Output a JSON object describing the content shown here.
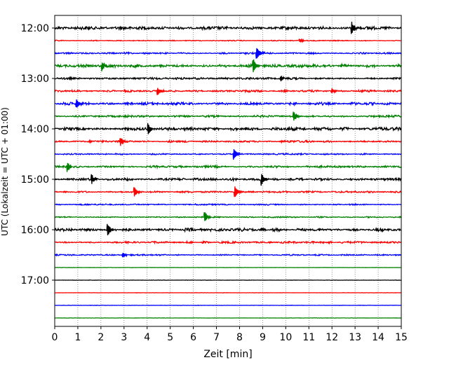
{
  "chart_data": {
    "type": "line",
    "title": "",
    "xlabel": "Zeit  [min]",
    "ylabel": "UTC (Lokalzeit = UTC + 01:00)",
    "xlim": [
      0,
      15
    ],
    "x_ticks": [
      "0",
      "1",
      "2",
      "3",
      "4",
      "5",
      "6",
      "7",
      "8",
      "9",
      "10",
      "11",
      "12",
      "13",
      "14",
      "15"
    ],
    "y_ticks": [
      "12:00",
      "13:00",
      "14:00",
      "15:00",
      "16:00",
      "17:00"
    ],
    "grid_x": true,
    "trace_colors": [
      "#000000",
      "#ff0000",
      "#0000ff",
      "#008000"
    ],
    "traces": [
      {
        "start": "12:00",
        "color": "#000000",
        "noise": 0.9,
        "events": [
          [
            12.85,
            4
          ]
        ]
      },
      {
        "start": "12:15",
        "color": "#ff0000",
        "noise": 0.3,
        "events": [
          [
            10.6,
            1
          ]
        ]
      },
      {
        "start": "12:30",
        "color": "#0000ff",
        "noise": 0.5,
        "events": [
          [
            8.75,
            3.5
          ]
        ]
      },
      {
        "start": "12:45",
        "color": "#008000",
        "noise": 0.9,
        "events": [
          [
            2.05,
            3
          ],
          [
            8.6,
            4
          ]
        ]
      },
      {
        "start": "13:00",
        "color": "#000000",
        "noise": 0.6,
        "events": [
          [
            9.8,
            1.5
          ]
        ]
      },
      {
        "start": "13:15",
        "color": "#ff0000",
        "noise": 0.6,
        "events": [
          [
            4.45,
            2.5
          ],
          [
            12.0,
            1.5
          ]
        ]
      },
      {
        "start": "13:30",
        "color": "#0000ff",
        "noise": 0.8,
        "events": [
          [
            0.95,
            2.5
          ]
        ]
      },
      {
        "start": "13:45",
        "color": "#008000",
        "noise": 0.6,
        "events": [
          [
            10.35,
            3
          ]
        ]
      },
      {
        "start": "14:00",
        "color": "#000000",
        "noise": 0.9,
        "events": [
          [
            4.05,
            3.5
          ]
        ]
      },
      {
        "start": "14:15",
        "color": "#ff0000",
        "noise": 0.6,
        "events": [
          [
            2.85,
            2.5
          ]
        ]
      },
      {
        "start": "14:30",
        "color": "#0000ff",
        "noise": 0.4,
        "events": [
          [
            7.75,
            3.5
          ]
        ]
      },
      {
        "start": "14:45",
        "color": "#008000",
        "noise": 0.6,
        "events": [
          [
            0.55,
            3
          ]
        ]
      },
      {
        "start": "15:00",
        "color": "#000000",
        "noise": 0.7,
        "events": [
          [
            1.6,
            3
          ],
          [
            8.95,
            4
          ]
        ]
      },
      {
        "start": "15:15",
        "color": "#ff0000",
        "noise": 0.5,
        "events": [
          [
            3.45,
            3
          ],
          [
            7.8,
            3.5
          ]
        ]
      },
      {
        "start": "15:30",
        "color": "#0000ff",
        "noise": 0.4,
        "events": []
      },
      {
        "start": "15:45",
        "color": "#008000",
        "noise": 0.4,
        "events": [
          [
            6.5,
            3
          ]
        ]
      },
      {
        "start": "16:00",
        "color": "#000000",
        "noise": 0.9,
        "events": [
          [
            2.3,
            3.5
          ],
          [
            8.95,
            1
          ]
        ]
      },
      {
        "start": "16:15",
        "color": "#ff0000",
        "noise": 0.6,
        "events": []
      },
      {
        "start": "16:30",
        "color": "#0000ff",
        "noise": 0.4,
        "events": [
          [
            2.95,
            1.5
          ]
        ]
      },
      {
        "start": "16:45",
        "color": "#008000",
        "noise": 0.1,
        "events": []
      },
      {
        "start": "17:00",
        "color": "#000000",
        "noise": 0.1,
        "events": []
      },
      {
        "start": "17:15",
        "color": "#ff0000",
        "noise": 0.1,
        "events": []
      },
      {
        "start": "17:30",
        "color": "#0000ff",
        "noise": 0.1,
        "events": []
      },
      {
        "start": "17:45",
        "color": "#008000",
        "noise": 0.1,
        "events": []
      }
    ]
  }
}
